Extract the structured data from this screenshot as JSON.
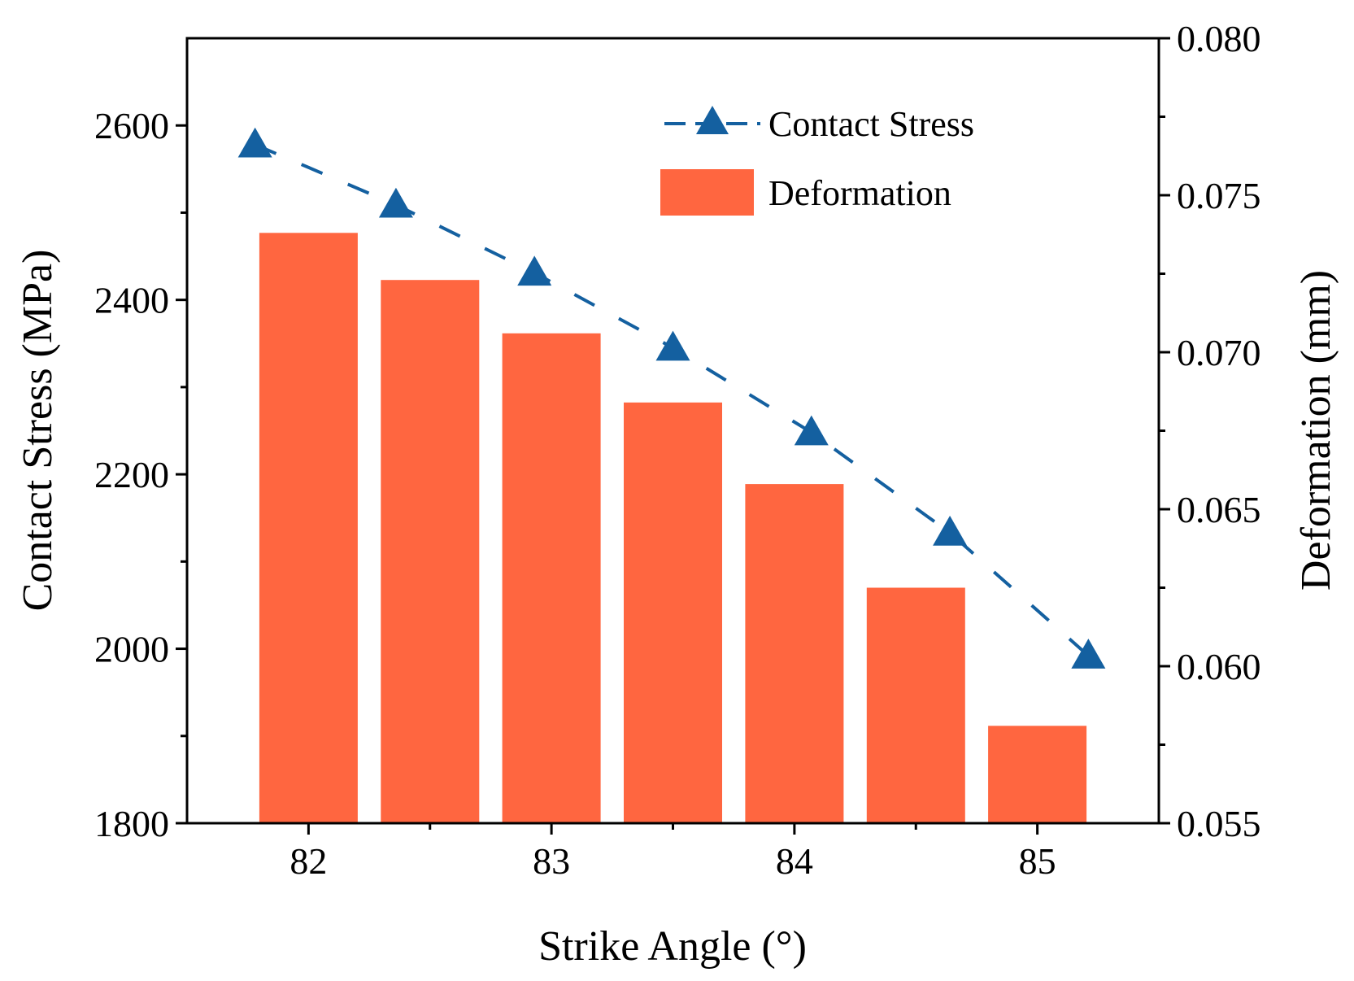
{
  "chart_data": {
    "type": "bar+line",
    "xlabel": "Strike Angle (°)",
    "ylabel_left": "Contact Stress (MPa)",
    "ylabel_right": "Deformation (mm)",
    "x_ticks": [
      "82",
      "83",
      "84",
      "85"
    ],
    "x_tick_values": [
      82,
      83,
      84,
      85
    ],
    "xlim": [
      81.5,
      85.5
    ],
    "y_left": {
      "lim": [
        1800,
        2700
      ],
      "ticks": [
        "1800",
        "2000",
        "2200",
        "2400",
        "2600"
      ],
      "tick_values": [
        1800,
        2000,
        2200,
        2400,
        2600
      ]
    },
    "y_right": {
      "lim": [
        0.055,
        0.08
      ],
      "ticks": [
        "0.055",
        "0.060",
        "0.065",
        "0.070",
        "0.075",
        "0.080"
      ],
      "tick_values": [
        0.055,
        0.06,
        0.065,
        0.07,
        0.075,
        0.08
      ]
    },
    "x": [
      82,
      82.5,
      83,
      83.5,
      84,
      84.5,
      85
    ],
    "series": [
      {
        "name": "Contact Stress",
        "kind": "line",
        "axis": "left",
        "line_style": "dashed",
        "marker": "triangle",
        "color": "#1460a0",
        "x": [
          81.78,
          82.36,
          82.93,
          83.5,
          84.07,
          84.64,
          85.21
        ],
        "values": [
          2578,
          2509,
          2431,
          2345,
          2248,
          2133,
          1992
        ]
      },
      {
        "name": "Deformation",
        "kind": "bar",
        "axis": "right",
        "color": "#ff6640",
        "values": [
          0.0738,
          0.0723,
          0.0706,
          0.0684,
          0.0658,
          0.0625,
          0.0581
        ]
      }
    ],
    "legend": {
      "position": "top-right"
    },
    "grid": false
  }
}
